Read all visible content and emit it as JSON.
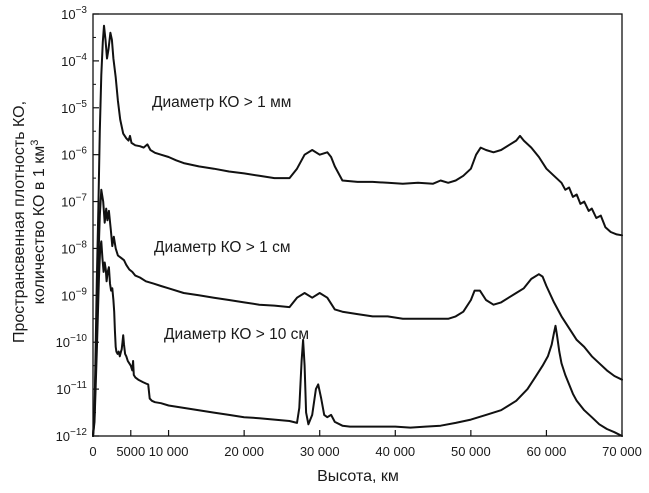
{
  "chart_data": {
    "type": "line",
    "xlabel": "Высота, км",
    "ylabel_line1": "Пространсвенная плотность КО,",
    "ylabel_line2": "количество КО в 1 км",
    "ylabel_sup": "3",
    "x_scale": "linear",
    "y_scale": "log",
    "xlim": [
      0,
      70000
    ],
    "ylim_exponents": [
      -12,
      -3
    ],
    "x_ticks": [
      {
        "value": 0,
        "label": "0"
      },
      {
        "value": 5000,
        "label": "5000"
      },
      {
        "value": 10000,
        "label": "10 000"
      },
      {
        "value": 20000,
        "label": "20 000"
      },
      {
        "value": 30000,
        "label": "30 000"
      },
      {
        "value": 40000,
        "label": "40 000"
      },
      {
        "value": 50000,
        "label": "50 000"
      },
      {
        "value": 60000,
        "label": "60 000"
      },
      {
        "value": 70000,
        "label": "70 000"
      }
    ],
    "y_ticks": [
      {
        "exp": -3,
        "base": "10",
        "sup": "−3"
      },
      {
        "exp": -4,
        "base": "10",
        "sup": "−4"
      },
      {
        "exp": -5,
        "base": "10",
        "sup": "−5"
      },
      {
        "exp": -6,
        "base": "10",
        "sup": "−6"
      },
      {
        "exp": -7,
        "base": "10",
        "sup": "−7"
      },
      {
        "exp": -8,
        "base": "10",
        "sup": "−8"
      },
      {
        "exp": -9,
        "base": "10",
        "sup": "−9"
      },
      {
        "exp": -10,
        "base": "10",
        "sup": "−10"
      },
      {
        "exp": -11,
        "base": "10",
        "sup": "−11"
      },
      {
        "exp": -12,
        "base": "10",
        "sup": "−12"
      }
    ],
    "grid": false,
    "series": [
      {
        "name": "Диаметр КО > 1 мм",
        "color": "#111111",
        "points": [
          [
            0,
            -12.0
          ],
          [
            200,
            -11.5
          ],
          [
            350,
            -10.2
          ],
          [
            500,
            -8.7
          ],
          [
            700,
            -7.2
          ],
          [
            900,
            -5.5
          ],
          [
            1100,
            -4.3
          ],
          [
            1300,
            -3.6
          ],
          [
            1450,
            -3.25
          ],
          [
            1650,
            -3.55
          ],
          [
            1850,
            -3.95
          ],
          [
            2050,
            -3.75
          ],
          [
            2300,
            -3.4
          ],
          [
            2500,
            -3.55
          ],
          [
            2700,
            -3.95
          ],
          [
            3000,
            -4.35
          ],
          [
            3300,
            -4.85
          ],
          [
            3600,
            -5.25
          ],
          [
            4000,
            -5.55
          ],
          [
            4400,
            -5.65
          ],
          [
            4700,
            -5.7
          ],
          [
            4900,
            -5.6
          ],
          [
            5100,
            -5.75
          ],
          [
            5600,
            -5.8
          ],
          [
            6200,
            -5.82
          ],
          [
            6700,
            -5.85
          ],
          [
            7200,
            -5.78
          ],
          [
            7600,
            -5.9
          ],
          [
            8200,
            -5.96
          ],
          [
            9000,
            -6.0
          ],
          [
            10000,
            -6.05
          ],
          [
            11000,
            -6.12
          ],
          [
            12000,
            -6.18
          ],
          [
            14000,
            -6.25
          ],
          [
            16000,
            -6.3
          ],
          [
            18000,
            -6.36
          ],
          [
            20000,
            -6.4
          ],
          [
            22000,
            -6.45
          ],
          [
            24000,
            -6.5
          ],
          [
            26000,
            -6.5
          ],
          [
            27000,
            -6.3
          ],
          [
            28000,
            -6.0
          ],
          [
            29000,
            -5.9
          ],
          [
            30000,
            -6.0
          ],
          [
            31000,
            -5.95
          ],
          [
            31500,
            -6.05
          ],
          [
            32000,
            -6.25
          ],
          [
            33000,
            -6.55
          ],
          [
            35000,
            -6.58
          ],
          [
            37000,
            -6.58
          ],
          [
            39000,
            -6.6
          ],
          [
            41000,
            -6.62
          ],
          [
            43000,
            -6.6
          ],
          [
            45000,
            -6.62
          ],
          [
            46000,
            -6.55
          ],
          [
            47000,
            -6.6
          ],
          [
            48000,
            -6.55
          ],
          [
            49000,
            -6.45
          ],
          [
            50000,
            -6.3
          ],
          [
            50700,
            -6.0
          ],
          [
            51300,
            -5.85
          ],
          [
            52000,
            -5.9
          ],
          [
            53000,
            -5.95
          ],
          [
            54000,
            -5.9
          ],
          [
            55000,
            -5.8
          ],
          [
            56000,
            -5.7
          ],
          [
            56500,
            -5.6
          ],
          [
            57000,
            -5.7
          ],
          [
            58000,
            -5.85
          ],
          [
            59000,
            -6.05
          ],
          [
            60000,
            -6.3
          ],
          [
            61000,
            -6.45
          ],
          [
            62000,
            -6.6
          ],
          [
            62500,
            -6.75
          ],
          [
            63000,
            -6.7
          ],
          [
            63500,
            -6.9
          ],
          [
            64000,
            -6.85
          ],
          [
            64500,
            -7.05
          ],
          [
            65000,
            -7.0
          ],
          [
            65600,
            -7.2
          ],
          [
            66000,
            -7.15
          ],
          [
            66600,
            -7.35
          ],
          [
            67200,
            -7.3
          ],
          [
            67800,
            -7.55
          ],
          [
            68500,
            -7.65
          ],
          [
            69300,
            -7.7
          ],
          [
            70000,
            -7.72
          ]
        ]
      },
      {
        "name": "Диаметр КО > 1 см",
        "color": "#111111",
        "points": [
          [
            0,
            -12.0
          ],
          [
            200,
            -11.6
          ],
          [
            350,
            -10.6
          ],
          [
            500,
            -9.4
          ],
          [
            700,
            -8.3
          ],
          [
            900,
            -7.3
          ],
          [
            1100,
            -6.75
          ],
          [
            1350,
            -7.0
          ],
          [
            1550,
            -7.45
          ],
          [
            1750,
            -7.15
          ],
          [
            1900,
            -7.4
          ],
          [
            2100,
            -7.2
          ],
          [
            2350,
            -7.6
          ],
          [
            2550,
            -7.95
          ],
          [
            2750,
            -7.75
          ],
          [
            3000,
            -8.0
          ],
          [
            3300,
            -8.15
          ],
          [
            3700,
            -8.2
          ],
          [
            4100,
            -8.25
          ],
          [
            4400,
            -8.35
          ],
          [
            4800,
            -8.45
          ],
          [
            5200,
            -8.5
          ],
          [
            5600,
            -8.58
          ],
          [
            6200,
            -8.62
          ],
          [
            7000,
            -8.7
          ],
          [
            8000,
            -8.75
          ],
          [
            9000,
            -8.8
          ],
          [
            10000,
            -8.85
          ],
          [
            12000,
            -8.95
          ],
          [
            14000,
            -9.0
          ],
          [
            16000,
            -9.05
          ],
          [
            18000,
            -9.1
          ],
          [
            20000,
            -9.15
          ],
          [
            22000,
            -9.2
          ],
          [
            24000,
            -9.22
          ],
          [
            26000,
            -9.25
          ],
          [
            27000,
            -9.05
          ],
          [
            28000,
            -8.95
          ],
          [
            29000,
            -9.05
          ],
          [
            30000,
            -8.95
          ],
          [
            31000,
            -9.05
          ],
          [
            32000,
            -9.3
          ],
          [
            33000,
            -9.35
          ],
          [
            35000,
            -9.4
          ],
          [
            37000,
            -9.45
          ],
          [
            39000,
            -9.45
          ],
          [
            41000,
            -9.5
          ],
          [
            43000,
            -9.5
          ],
          [
            45000,
            -9.5
          ],
          [
            47000,
            -9.5
          ],
          [
            48000,
            -9.45
          ],
          [
            49000,
            -9.35
          ],
          [
            50000,
            -9.1
          ],
          [
            50500,
            -8.9
          ],
          [
            51200,
            -8.9
          ],
          [
            52000,
            -9.1
          ],
          [
            53000,
            -9.2
          ],
          [
            54000,
            -9.15
          ],
          [
            55000,
            -9.05
          ],
          [
            56000,
            -8.95
          ],
          [
            57000,
            -8.85
          ],
          [
            58000,
            -8.65
          ],
          [
            59000,
            -8.55
          ],
          [
            59500,
            -8.6
          ],
          [
            60000,
            -8.8
          ],
          [
            61000,
            -9.15
          ],
          [
            62000,
            -9.45
          ],
          [
            63000,
            -9.7
          ],
          [
            64000,
            -9.95
          ],
          [
            65000,
            -10.1
          ],
          [
            66000,
            -10.3
          ],
          [
            67000,
            -10.45
          ],
          [
            68000,
            -10.6
          ],
          [
            69000,
            -10.72
          ],
          [
            70000,
            -10.8
          ]
        ]
      },
      {
        "name": "Диаметр КО > 10 см",
        "color": "#111111",
        "points": [
          [
            0,
            -12.0
          ],
          [
            200,
            -11.7
          ],
          [
            350,
            -11.0
          ],
          [
            500,
            -10.2
          ],
          [
            650,
            -9.4
          ],
          [
            800,
            -8.6
          ],
          [
            950,
            -8.0
          ],
          [
            1100,
            -7.85
          ],
          [
            1250,
            -8.2
          ],
          [
            1400,
            -8.5
          ],
          [
            1550,
            -8.3
          ],
          [
            1700,
            -8.45
          ],
          [
            1800,
            -8.7
          ],
          [
            1950,
            -8.5
          ],
          [
            2100,
            -8.4
          ],
          [
            2250,
            -8.75
          ],
          [
            2400,
            -8.9
          ],
          [
            2550,
            -8.85
          ],
          [
            2700,
            -9.1
          ],
          [
            2800,
            -9.35
          ],
          [
            2900,
            -9.75
          ],
          [
            3000,
            -10.1
          ],
          [
            3100,
            -10.2
          ],
          [
            3250,
            -10.25
          ],
          [
            3400,
            -10.2
          ],
          [
            3550,
            -10.3
          ],
          [
            3700,
            -10.2
          ],
          [
            3800,
            -10.15
          ],
          [
            3900,
            -10.0
          ],
          [
            4000,
            -9.85
          ],
          [
            4100,
            -10.05
          ],
          [
            4250,
            -10.25
          ],
          [
            4400,
            -10.3
          ],
          [
            4600,
            -10.4
          ],
          [
            4800,
            -10.45
          ],
          [
            5000,
            -10.5
          ],
          [
            5200,
            -10.6
          ],
          [
            5300,
            -10.4
          ],
          [
            5400,
            -10.7
          ],
          [
            5600,
            -10.75
          ],
          [
            6000,
            -10.8
          ],
          [
            6600,
            -10.85
          ],
          [
            7000,
            -10.88
          ],
          [
            7300,
            -10.9
          ],
          [
            7500,
            -11.2
          ],
          [
            7800,
            -11.25
          ],
          [
            8200,
            -11.28
          ],
          [
            9000,
            -11.3
          ],
          [
            10000,
            -11.35
          ],
          [
            12000,
            -11.4
          ],
          [
            14000,
            -11.45
          ],
          [
            16000,
            -11.5
          ],
          [
            18000,
            -11.55
          ],
          [
            20000,
            -11.6
          ],
          [
            22000,
            -11.62
          ],
          [
            24000,
            -11.65
          ],
          [
            26000,
            -11.68
          ],
          [
            27000,
            -11.72
          ],
          [
            27300,
            -11.4
          ],
          [
            27600,
            -10.4
          ],
          [
            27800,
            -9.95
          ],
          [
            28000,
            -10.5
          ],
          [
            28200,
            -11.5
          ],
          [
            28500,
            -11.75
          ],
          [
            29000,
            -11.55
          ],
          [
            29500,
            -11.0
          ],
          [
            29800,
            -10.9
          ],
          [
            30200,
            -11.2
          ],
          [
            30600,
            -11.55
          ],
          [
            31000,
            -11.6
          ],
          [
            31500,
            -11.55
          ],
          [
            32000,
            -11.7
          ],
          [
            33000,
            -11.78
          ],
          [
            34000,
            -11.8
          ],
          [
            36000,
            -11.8
          ],
          [
            38000,
            -11.8
          ],
          [
            40000,
            -11.8
          ],
          [
            42000,
            -11.82
          ],
          [
            44000,
            -11.8
          ],
          [
            46000,
            -11.78
          ],
          [
            48000,
            -11.72
          ],
          [
            50000,
            -11.65
          ],
          [
            52000,
            -11.55
          ],
          [
            54000,
            -11.45
          ],
          [
            56000,
            -11.25
          ],
          [
            57500,
            -11.0
          ],
          [
            58500,
            -10.75
          ],
          [
            59500,
            -10.5
          ],
          [
            60200,
            -10.3
          ],
          [
            60700,
            -10.05
          ],
          [
            61000,
            -9.8
          ],
          [
            61200,
            -9.65
          ],
          [
            61400,
            -9.85
          ],
          [
            61700,
            -10.2
          ],
          [
            62000,
            -10.45
          ],
          [
            62500,
            -10.7
          ],
          [
            63000,
            -10.9
          ],
          [
            63500,
            -11.1
          ],
          [
            64000,
            -11.25
          ],
          [
            65000,
            -11.45
          ],
          [
            66000,
            -11.6
          ],
          [
            67000,
            -11.75
          ],
          [
            68000,
            -11.85
          ],
          [
            69000,
            -11.92
          ],
          [
            70000,
            -12.0
          ]
        ]
      }
    ]
  }
}
